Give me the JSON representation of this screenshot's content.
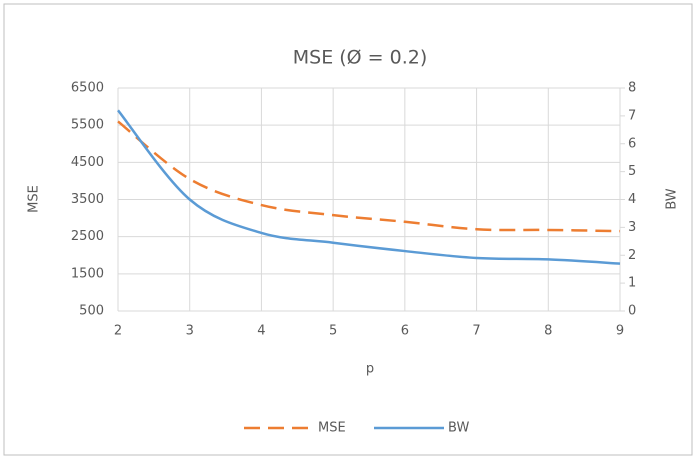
{
  "chart_data": {
    "type": "line",
    "title": "MSE (Ø = 0.2)",
    "x_label": "p",
    "y_label": "MSE",
    "y2_label": "BW",
    "x": [
      2,
      3,
      4,
      5,
      6,
      7,
      8,
      9
    ],
    "series": [
      {
        "name": "MSE",
        "color": "#ed7d31",
        "dashed": true,
        "values": [
          5600,
          4050,
          3350,
          3080,
          2900,
          2700,
          2680,
          2650
        ]
      },
      {
        "name": "BW",
        "color": "#5b9bd5",
        "axis": "y2",
        "values": [
          7.2,
          4.0,
          2.8,
          2.45,
          2.15,
          1.9,
          1.85,
          1.7
        ]
      }
    ],
    "xlim": [
      2,
      9
    ],
    "xticks": [
      2,
      3,
      4,
      5,
      6,
      7,
      8,
      9
    ],
    "ylim": [
      500,
      6500
    ],
    "yticks": [
      500,
      1500,
      2500,
      3500,
      4500,
      5500,
      6500
    ],
    "y2lim": [
      0,
      8
    ],
    "y2ticks": [
      0,
      1,
      2,
      3,
      4,
      5,
      6,
      7,
      8
    ],
    "grid": true,
    "legend": "bottom"
  }
}
